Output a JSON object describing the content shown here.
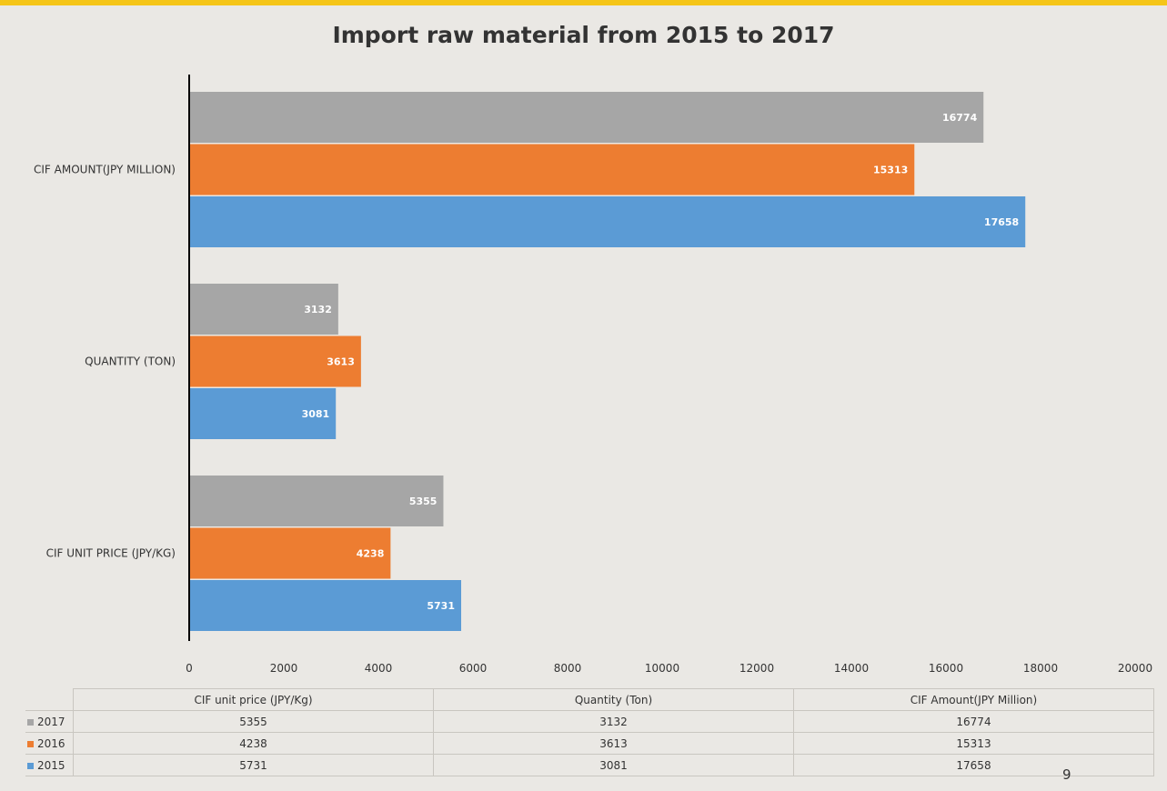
{
  "title": "Import raw material from 2015 to 2017",
  "page_number": "9",
  "colors": {
    "2017": "#a6a6a6",
    "2016": "#ed7d31",
    "2015": "#5b9bd5",
    "accent_bar": "#f5c518"
  },
  "chart_data": {
    "type": "bar",
    "orientation": "horizontal",
    "categories": [
      "CIF AMOUNT(JPY MILLION)",
      "QUANTITY (TON)",
      "CIF UNIT PRICE (JPY/KG)"
    ],
    "series": [
      {
        "name": "2017",
        "values": [
          16774,
          3132,
          5355
        ]
      },
      {
        "name": "2016",
        "values": [
          15313,
          3613,
          4238
        ]
      },
      {
        "name": "2015",
        "values": [
          17658,
          3081,
          5731
        ]
      }
    ],
    "xlim": [
      0,
      20000
    ],
    "xticks": [
      "0",
      "2000",
      "4000",
      "6000",
      "8000",
      "10000",
      "12000",
      "14000",
      "16000",
      "18000",
      "20000"
    ],
    "grid": false,
    "data_labels": true
  },
  "table": {
    "columns": [
      "CIF unit price (JPY/Kg)",
      "Quantity (Ton)",
      "CIF Amount(JPY Million)"
    ],
    "rows": [
      {
        "label": "2017",
        "values": [
          "5355",
          "3132",
          "16774"
        ]
      },
      {
        "label": "2016",
        "values": [
          "4238",
          "3613",
          "15313"
        ]
      },
      {
        "label": "2015",
        "values": [
          "5731",
          "3081",
          "17658"
        ]
      }
    ]
  }
}
